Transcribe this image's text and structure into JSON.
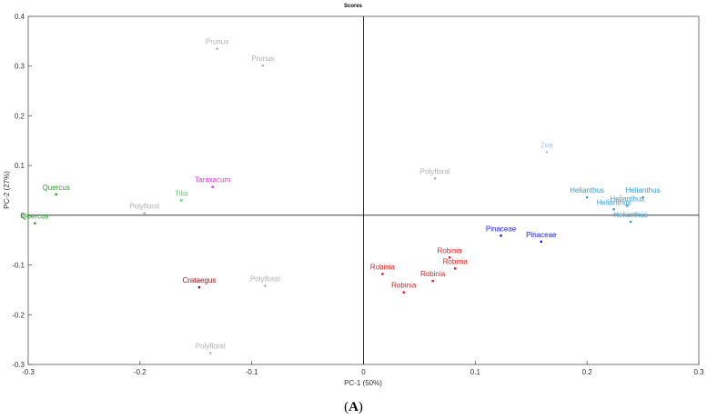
{
  "chart_data": {
    "type": "scatter",
    "title": "Scores",
    "xlabel": "PC-1 (50%)",
    "ylabel": "PC-2 (27%)",
    "xlim": [
      -0.3,
      0.3
    ],
    "ylim": [
      -0.3,
      0.4
    ],
    "x_ticks": [
      "-0.3",
      "-0.2",
      "-0.1",
      "0",
      "0.1",
      "0.2",
      "0.3"
    ],
    "y_ticks": [
      "0.4",
      "0.3",
      "0.2",
      "0.1",
      "0",
      "-0.1",
      "-0.2",
      "-0.3"
    ],
    "points": [
      {
        "label": "Prunus",
        "x": -0.131,
        "y": 0.335,
        "color": "#b0b0b0"
      },
      {
        "label": "Prunus",
        "x": -0.09,
        "y": 0.301,
        "color": "#b0b0b0"
      },
      {
        "label": "Quercus",
        "x": -0.275,
        "y": 0.042,
        "color": "#2e9a2e"
      },
      {
        "label": "Quercus",
        "x": -0.294,
        "y": -0.016,
        "color": "#2e9a2e"
      },
      {
        "label": "Tilia",
        "x": -0.163,
        "y": 0.03,
        "color": "#5ad65a"
      },
      {
        "label": "Taraxacum",
        "x": -0.135,
        "y": 0.057,
        "color": "#d838d8"
      },
      {
        "label": "Polyfloral",
        "x": -0.196,
        "y": 0.004,
        "color": "#b0b0b0"
      },
      {
        "label": "Crataegus",
        "x": -0.147,
        "y": -0.145,
        "color": "#a01010"
      },
      {
        "label": "Polyfloral",
        "x": -0.088,
        "y": -0.142,
        "color": "#b0b0b0"
      },
      {
        "label": "Polyfloral",
        "x": -0.137,
        "y": -0.277,
        "color": "#b0b0b0"
      },
      {
        "label": "Polyfloral",
        "x": 0.064,
        "y": 0.074,
        "color": "#b0b0b0"
      },
      {
        "label": "Zea",
        "x": 0.164,
        "y": 0.127,
        "color": "#a8c4e8"
      },
      {
        "label": "Helianthus",
        "x": 0.2,
        "y": 0.036,
        "color": "#3a9ad6"
      },
      {
        "label": "Helianthus",
        "x": 0.25,
        "y": 0.036,
        "color": "#3a9ad6"
      },
      {
        "label": "Helianthus",
        "x": 0.236,
        "y": 0.019,
        "color": "#3a9ad6"
      },
      {
        "label": "Helianthus",
        "x": 0.224,
        "y": 0.012,
        "color": "#3a9ad6"
      },
      {
        "label": "Helianthus",
        "x": 0.239,
        "y": -0.013,
        "color": "#3a9ad6"
      },
      {
        "label": "Pinaceae",
        "x": 0.123,
        "y": -0.041,
        "color": "#1a1aff"
      },
      {
        "label": "Pinaceae",
        "x": 0.159,
        "y": -0.053,
        "color": "#1a1aff"
      },
      {
        "label": "Robinia",
        "x": 0.077,
        "y": -0.085,
        "color": "#e02020"
      },
      {
        "label": "Robinia",
        "x": 0.082,
        "y": -0.107,
        "color": "#e02020"
      },
      {
        "label": "Robinia",
        "x": 0.017,
        "y": -0.118,
        "color": "#e02020"
      },
      {
        "label": "Robinia",
        "x": 0.062,
        "y": -0.132,
        "color": "#e02020"
      },
      {
        "label": "Robinia",
        "x": 0.036,
        "y": -0.155,
        "color": "#e02020"
      }
    ]
  },
  "caption": {
    "open": "(",
    "letter": "A",
    "close": ")"
  }
}
